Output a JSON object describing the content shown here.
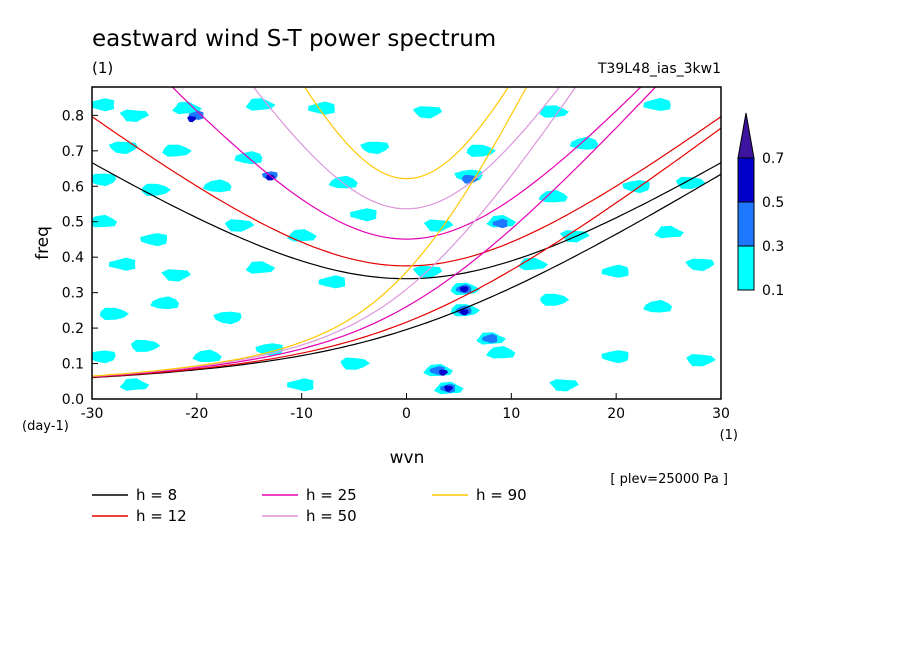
{
  "chart_data": {
    "type": "contour",
    "title": "eastward wind S-T power spectrum",
    "units_label": "(1)",
    "run_label": "T39L48_ias_3kw1",
    "xlabel": "wvn",
    "ylabel": "freq",
    "x_units": "(1)",
    "y_units": "(day-1)",
    "xlim": [
      -30,
      30
    ],
    "ylim": [
      0,
      0.88
    ],
    "x_ticks": [
      -30,
      -20,
      -10,
      0,
      10,
      20,
      30
    ],
    "x_tick_labels": [
      "-30",
      "-20",
      "-10",
      "0",
      "10",
      "20",
      "30"
    ],
    "y_ticks": [
      0,
      0.1,
      0.2,
      0.3,
      0.4,
      0.5,
      0.6,
      0.7,
      0.8
    ],
    "y_tick_labels": [
      "0.0",
      "0.1",
      "0.2",
      "0.3",
      "0.4",
      "0.5",
      "0.6",
      "0.7",
      "0.8"
    ],
    "plev_note": "[ plev=25000 Pa ]",
    "colorbar": {
      "levels": [
        0.1,
        0.3,
        0.5,
        0.7
      ],
      "labels": [
        "0.1",
        "0.3",
        "0.5",
        "0.7"
      ],
      "colors": [
        "#00ffff",
        "#1e78ff",
        "#0000cd",
        "#3c14a0"
      ]
    },
    "dispersion_curves": [
      {
        "name": "h =  8",
        "h": 8,
        "color": "#000000"
      },
      {
        "name": "h = 12",
        "h": 12,
        "color": "#e60000"
      },
      {
        "name": "h = 25",
        "h": 25,
        "color": "#e600b4"
      },
      {
        "name": "h = 50",
        "h": 50,
        "color": "#dc96dc"
      },
      {
        "name": "h = 90",
        "h": 90,
        "color": "#ffc800"
      }
    ],
    "contour_blobs": [
      {
        "k": -29,
        "f": 0.83,
        "level": 0.1
      },
      {
        "k": -26,
        "f": 0.8,
        "level": 0.1
      },
      {
        "k": -21,
        "f": 0.82,
        "level": 0.1
      },
      {
        "k": -20,
        "f": 0.8,
        "level": 0.3
      },
      {
        "k": -20.5,
        "f": 0.79,
        "level": 0.5
      },
      {
        "k": -14,
        "f": 0.83,
        "level": 0.1
      },
      {
        "k": -8,
        "f": 0.82,
        "level": 0.1
      },
      {
        "k": 2,
        "f": 0.81,
        "level": 0.1
      },
      {
        "k": 14,
        "f": 0.81,
        "level": 0.1
      },
      {
        "k": 24,
        "f": 0.83,
        "level": 0.1
      },
      {
        "k": -27,
        "f": 0.71,
        "level": 0.1
      },
      {
        "k": -22,
        "f": 0.7,
        "level": 0.1
      },
      {
        "k": -15,
        "f": 0.68,
        "level": 0.1
      },
      {
        "k": -3,
        "f": 0.71,
        "level": 0.1
      },
      {
        "k": 7,
        "f": 0.7,
        "level": 0.1
      },
      {
        "k": 17,
        "f": 0.72,
        "level": 0.1
      },
      {
        "k": -29,
        "f": 0.62,
        "level": 0.1
      },
      {
        "k": -24,
        "f": 0.59,
        "level": 0.1
      },
      {
        "k": -18,
        "f": 0.6,
        "level": 0.1
      },
      {
        "k": -13,
        "f": 0.63,
        "level": 0.3
      },
      {
        "k": -13,
        "f": 0.625,
        "level": 0.5
      },
      {
        "k": -6,
        "f": 0.61,
        "level": 0.1
      },
      {
        "k": 6,
        "f": 0.63,
        "level": 0.1
      },
      {
        "k": 6,
        "f": 0.62,
        "level": 0.3
      },
      {
        "k": 14,
        "f": 0.57,
        "level": 0.1
      },
      {
        "k": 22,
        "f": 0.6,
        "level": 0.1
      },
      {
        "k": 27,
        "f": 0.61,
        "level": 0.1
      },
      {
        "k": -29,
        "f": 0.5,
        "level": 0.1
      },
      {
        "k": -24,
        "f": 0.45,
        "level": 0.1
      },
      {
        "k": -16,
        "f": 0.49,
        "level": 0.1
      },
      {
        "k": -10,
        "f": 0.46,
        "level": 0.1
      },
      {
        "k": -4,
        "f": 0.52,
        "level": 0.1
      },
      {
        "k": 3,
        "f": 0.49,
        "level": 0.1
      },
      {
        "k": 9,
        "f": 0.5,
        "level": 0.1
      },
      {
        "k": 9,
        "f": 0.495,
        "level": 0.3
      },
      {
        "k": 16,
        "f": 0.46,
        "level": 0.1
      },
      {
        "k": 25,
        "f": 0.47,
        "level": 0.1
      },
      {
        "k": -27,
        "f": 0.38,
        "level": 0.1
      },
      {
        "k": -22,
        "f": 0.35,
        "level": 0.1
      },
      {
        "k": -14,
        "f": 0.37,
        "level": 0.1
      },
      {
        "k": -7,
        "f": 0.33,
        "level": 0.1
      },
      {
        "k": 2,
        "f": 0.36,
        "level": 0.1
      },
      {
        "k": 12,
        "f": 0.38,
        "level": 0.1
      },
      {
        "k": 20,
        "f": 0.36,
        "level": 0.1
      },
      {
        "k": 28,
        "f": 0.38,
        "level": 0.1
      },
      {
        "k": 5.5,
        "f": 0.31,
        "level": 0.1
      },
      {
        "k": 5.5,
        "f": 0.31,
        "level": 0.3
      },
      {
        "k": 5.5,
        "f": 0.31,
        "level": 0.5
      },
      {
        "k": 5.5,
        "f": 0.25,
        "level": 0.1
      },
      {
        "k": 5.5,
        "f": 0.25,
        "level": 0.3
      },
      {
        "k": 5.5,
        "f": 0.245,
        "level": 0.5
      },
      {
        "k": -28,
        "f": 0.24,
        "level": 0.1
      },
      {
        "k": -23,
        "f": 0.27,
        "level": 0.1
      },
      {
        "k": -17,
        "f": 0.23,
        "level": 0.1
      },
      {
        "k": 14,
        "f": 0.28,
        "level": 0.1
      },
      {
        "k": 24,
        "f": 0.26,
        "level": 0.1
      },
      {
        "k": -29,
        "f": 0.12,
        "level": 0.1
      },
      {
        "k": -25,
        "f": 0.15,
        "level": 0.1
      },
      {
        "k": -19,
        "f": 0.12,
        "level": 0.1
      },
      {
        "k": -13,
        "f": 0.14,
        "level": 0.1
      },
      {
        "k": -5,
        "f": 0.1,
        "level": 0.1
      },
      {
        "k": 9,
        "f": 0.13,
        "level": 0.1
      },
      {
        "k": 20,
        "f": 0.12,
        "level": 0.1
      },
      {
        "k": 28,
        "f": 0.11,
        "level": 0.1
      },
      {
        "k": 3,
        "f": 0.08,
        "level": 0.1
      },
      {
        "k": 3,
        "f": 0.08,
        "level": 0.3
      },
      {
        "k": 3.5,
        "f": 0.075,
        "level": 0.5
      },
      {
        "k": 4,
        "f": 0.03,
        "level": 0.1
      },
      {
        "k": 4,
        "f": 0.03,
        "level": 0.3
      },
      {
        "k": 4,
        "f": 0.03,
        "level": 0.5
      },
      {
        "k": -26,
        "f": 0.04,
        "level": 0.1
      },
      {
        "k": -10,
        "f": 0.04,
        "level": 0.1
      },
      {
        "k": 15,
        "f": 0.04,
        "level": 0.1
      },
      {
        "k": 8,
        "f": 0.17,
        "level": 0.1
      },
      {
        "k": 8,
        "f": 0.17,
        "level": 0.3
      }
    ]
  }
}
